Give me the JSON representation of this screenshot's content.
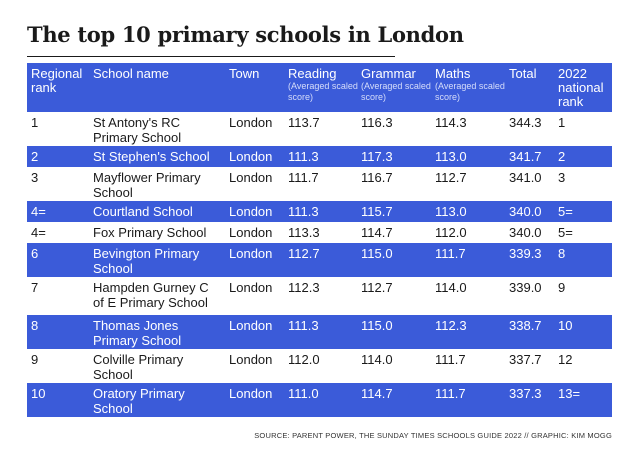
{
  "title": "The top 10 primary schools in London",
  "headers": {
    "rank": "Regional rank",
    "school": "School name",
    "town": "Town",
    "reading": "Reading",
    "reading_sub": "(Averaged scaled score)",
    "grammar": "Grammar",
    "grammar_sub": "(Averaged scaled score)",
    "maths": "Maths",
    "maths_sub": "(Averaged scaled score)",
    "total": "Total",
    "national": "2022 national rank"
  },
  "rows": [
    {
      "rank": "1",
      "school": "St Antony's RC Primary School",
      "town": "London",
      "reading": "113.7",
      "grammar": "116.3",
      "maths": "114.3",
      "total": "344.3",
      "national": "1"
    },
    {
      "rank": "2",
      "school": "St Stephen's School",
      "town": "London",
      "reading": "111.3",
      "grammar": "117.3",
      "maths": "113.0",
      "total": "341.7",
      "national": "2"
    },
    {
      "rank": "3",
      "school": "Mayflower Primary School",
      "town": "London",
      "reading": "111.7",
      "grammar": "116.7",
      "maths": "112.7",
      "total": "341.0",
      "national": "3"
    },
    {
      "rank": "4=",
      "school": "Courtland School",
      "town": "London",
      "reading": "111.3",
      "grammar": "115.7",
      "maths": "113.0",
      "total": "340.0",
      "national": "5="
    },
    {
      "rank": "4=",
      "school": "Fox Primary School",
      "town": "London",
      "reading": "113.3",
      "grammar": "114.7",
      "maths": "112.0",
      "total": "340.0",
      "national": "5="
    },
    {
      "rank": "6",
      "school": "Bevington Primary School",
      "town": "London",
      "reading": "112.7",
      "grammar": "115.0",
      "maths": "111.7",
      "total": "339.3",
      "national": "8"
    },
    {
      "rank": "7",
      "school": "Hampden Gurney C of E Primary School",
      "town": "London",
      "reading": "112.3",
      "grammar": "112.7",
      "maths": "114.0",
      "total": "339.0",
      "national": "9"
    },
    {
      "rank": "8",
      "school": "Thomas Jones Primary School",
      "town": "London",
      "reading": "111.3",
      "grammar": "115.0",
      "maths": "112.3",
      "total": "338.7",
      "national": "10"
    },
    {
      "rank": "9",
      "school": "Colville Primary School",
      "town": "London",
      "reading": "112.0",
      "grammar": "114.0",
      "maths": "111.7",
      "total": "337.7",
      "national": "12"
    },
    {
      "rank": "10",
      "school": "Oratory Primary School",
      "town": "London",
      "reading": "111.0",
      "grammar": "114.7",
      "maths": "111.7",
      "total": "337.3",
      "national": "13="
    }
  ],
  "footer": "SOURCE: PARENT POWER, THE SUNDAY TIMES SCHOOLS GUIDE 2022 // GRAPHIC: KIM MOGG",
  "colors": {
    "accent": "#3b5bd9",
    "text": "#1a1a1a"
  }
}
